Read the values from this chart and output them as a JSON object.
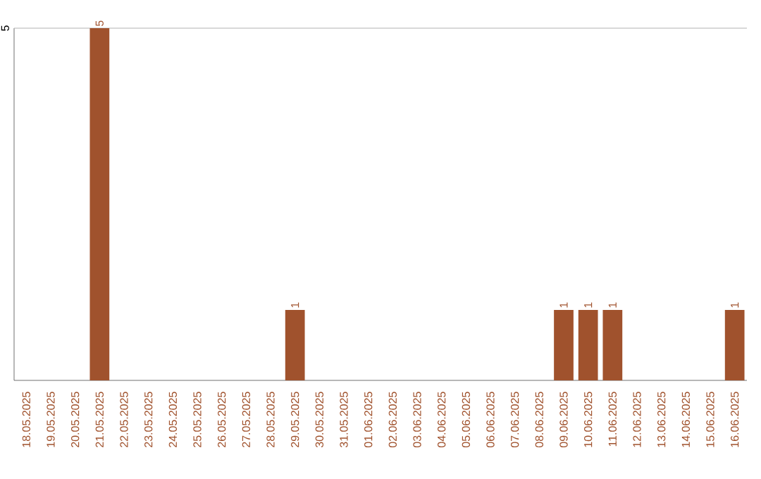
{
  "chart_data": {
    "type": "bar",
    "categories": [
      "18.05.2025",
      "19.05.2025",
      "20.05.2025",
      "21.05.2025",
      "22.05.2025",
      "23.05.2025",
      "24.05.2025",
      "25.05.2025",
      "26.05.2025",
      "27.05.2025",
      "28.05.2025",
      "29.05.2025",
      "30.05.2025",
      "31.05.2025",
      "01.06.2025",
      "02.06.2025",
      "03.06.2025",
      "04.06.2025",
      "05.06.2025",
      "06.06.2025",
      "07.06.2025",
      "08.06.2025",
      "09.06.2025",
      "10.06.2025",
      "11.06.2025",
      "12.06.2025",
      "13.06.2025",
      "14.06.2025",
      "15.06.2025",
      "16.06.2025"
    ],
    "values": [
      0,
      0,
      0,
      5,
      0,
      0,
      0,
      0,
      0,
      0,
      0,
      1,
      0,
      0,
      0,
      0,
      0,
      0,
      0,
      0,
      0,
      0,
      1,
      1,
      1,
      0,
      0,
      0,
      0,
      1
    ],
    "color": "#a0522d",
    "value_labels": [
      null,
      null,
      null,
      "5",
      null,
      null,
      null,
      null,
      null,
      null,
      null,
      "1",
      null,
      null,
      null,
      null,
      null,
      null,
      null,
      null,
      null,
      null,
      "1",
      "1",
      "1",
      null,
      null,
      null,
      null,
      "1"
    ],
    "ylim": [
      0,
      5
    ],
    "yticks": [
      5
    ]
  }
}
